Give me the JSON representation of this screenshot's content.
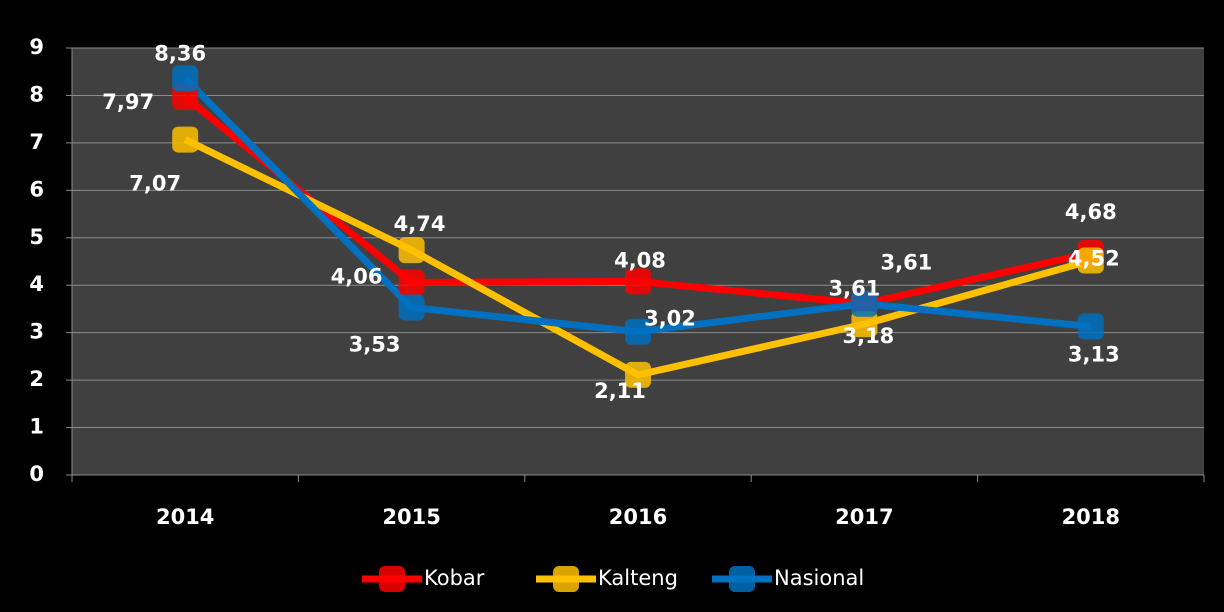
{
  "chart_data": {
    "type": "line",
    "categories": [
      "2014",
      "2015",
      "2016",
      "2017",
      "2018"
    ],
    "series": [
      {
        "name": "Kobar",
        "color": "#ff0000",
        "values": [
          7.97,
          4.06,
          4.08,
          3.61,
          4.68
        ],
        "value_labels": [
          "7,97",
          "4,06",
          "4,08",
          "3,61",
          "4,68"
        ]
      },
      {
        "name": "Kalteng",
        "color": "#ffc000",
        "values": [
          7.07,
          4.74,
          2.11,
          3.18,
          4.52
        ],
        "value_labels": [
          "7,07",
          "4,74",
          "2,11",
          "3,18",
          "4,52"
        ]
      },
      {
        "name": "Nasional",
        "color": "#0070c0",
        "values": [
          8.36,
          3.53,
          3.02,
          3.61,
          3.13
        ],
        "value_labels": [
          "8,36",
          "3,53",
          "3,02",
          "3,61",
          "3,13"
        ]
      }
    ],
    "ylim": [
      0,
      9
    ],
    "yticks": [
      0,
      1,
      2,
      3,
      4,
      5,
      6,
      7,
      8,
      9
    ],
    "grid": true,
    "legend": "bottom"
  }
}
